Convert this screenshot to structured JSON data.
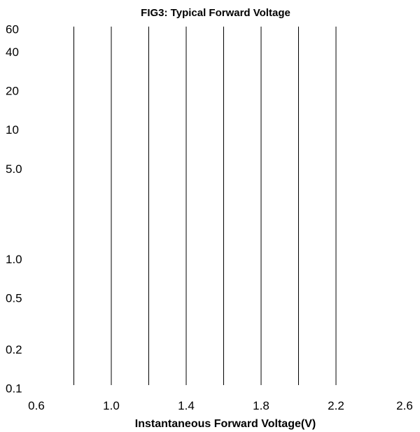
{
  "chart_data": {
    "type": "line",
    "title": "FIG3: Typical Forward Voltage",
    "xlabel": "Instantaneous Forward Voltage(V)",
    "ylabel": "",
    "x_ticks": [
      "0.6",
      "1.0",
      "1.4",
      "1.8",
      "2.2",
      "2.6"
    ],
    "x_tick_values": [
      0.6,
      1.0,
      1.4,
      1.8,
      2.2,
      2.6
    ],
    "y_ticks": [
      "60",
      "40",
      "20",
      "10",
      "5.0",
      "1.0",
      "0.5",
      "0.2",
      "0.1"
    ],
    "y_tick_values": [
      60,
      40,
      20,
      10,
      5,
      1,
      0.5,
      0.2,
      0.1
    ],
    "xlim": [
      0.6,
      2.6
    ],
    "ylim": [
      0.1,
      60
    ],
    "y_scale": "log",
    "grid": {
      "vertical": true,
      "horizontal": false,
      "vertical_line_x": [
        0.8,
        1.0,
        1.2,
        1.4,
        1.6,
        1.8,
        2.0,
        2.2
      ]
    },
    "series": []
  }
}
